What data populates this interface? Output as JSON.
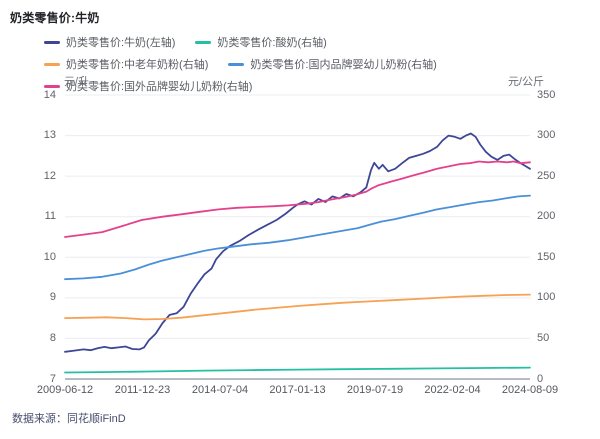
{
  "page": {
    "title": "奶类零售价:牛奶",
    "source": "数据来源：同花顺iFinD"
  },
  "chart_data": {
    "type": "line",
    "title": "奶类零售价:牛奶",
    "grid": true,
    "legend_position": "top",
    "x_range": [
      "2009-06-12",
      "2024-08-09"
    ],
    "x_tick_labels": [
      "2009-06-12",
      "2011-12-23",
      "2014-07-04",
      "2017-01-13",
      "2019-07-19",
      "2022-02-04",
      "2024-08-09"
    ],
    "left_axis": {
      "label": "元/升",
      "min": 7,
      "max": 14,
      "ticks": [
        "14",
        "13",
        "12",
        "11",
        "10",
        "9",
        "8",
        "7"
      ]
    },
    "right_axis": {
      "label": "元/公斤",
      "min": 0,
      "max": 350,
      "ticks": [
        "350",
        "300",
        "250",
        "200",
        "150",
        "100",
        "50",
        "0"
      ]
    },
    "colors": {
      "milk": "#3D4796",
      "yogurt": "#24BFA4",
      "senior_powder": "#F7A152",
      "domestic_infant_powder": "#4A90D8",
      "foreign_infant_powder": "#E4418C"
    },
    "series": [
      {
        "name": "奶类零售价:牛奶(左轴)",
        "id": "milk",
        "axis": "left",
        "color": "#3D4796",
        "points": [
          [
            0,
            7.67
          ],
          [
            0.02,
            7.7
          ],
          [
            0.04,
            7.73
          ],
          [
            0.055,
            7.71
          ],
          [
            0.07,
            7.76
          ],
          [
            0.085,
            7.79
          ],
          [
            0.1,
            7.76
          ],
          [
            0.115,
            7.78
          ],
          [
            0.13,
            7.8
          ],
          [
            0.145,
            7.74
          ],
          [
            0.16,
            7.73
          ],
          [
            0.17,
            7.78
          ],
          [
            0.18,
            7.95
          ],
          [
            0.195,
            8.12
          ],
          [
            0.21,
            8.38
          ],
          [
            0.225,
            8.58
          ],
          [
            0.24,
            8.62
          ],
          [
            0.255,
            8.78
          ],
          [
            0.27,
            9.1
          ],
          [
            0.285,
            9.35
          ],
          [
            0.3,
            9.58
          ],
          [
            0.315,
            9.72
          ],
          [
            0.325,
            9.95
          ],
          [
            0.34,
            10.15
          ],
          [
            0.355,
            10.28
          ],
          [
            0.375,
            10.4
          ],
          [
            0.395,
            10.55
          ],
          [
            0.415,
            10.68
          ],
          [
            0.435,
            10.8
          ],
          [
            0.455,
            10.92
          ],
          [
            0.475,
            11.08
          ],
          [
            0.49,
            11.22
          ],
          [
            0.5,
            11.3
          ],
          [
            0.515,
            11.38
          ],
          [
            0.53,
            11.3
          ],
          [
            0.545,
            11.44
          ],
          [
            0.56,
            11.36
          ],
          [
            0.575,
            11.5
          ],
          [
            0.59,
            11.45
          ],
          [
            0.605,
            11.56
          ],
          [
            0.62,
            11.5
          ],
          [
            0.635,
            11.6
          ],
          [
            0.648,
            11.72
          ],
          [
            0.658,
            12.15
          ],
          [
            0.665,
            12.33
          ],
          [
            0.675,
            12.18
          ],
          [
            0.683,
            12.28
          ],
          [
            0.695,
            12.12
          ],
          [
            0.71,
            12.18
          ],
          [
            0.725,
            12.32
          ],
          [
            0.74,
            12.45
          ],
          [
            0.755,
            12.5
          ],
          [
            0.77,
            12.55
          ],
          [
            0.785,
            12.62
          ],
          [
            0.8,
            12.72
          ],
          [
            0.812,
            12.88
          ],
          [
            0.825,
            13.0
          ],
          [
            0.838,
            12.97
          ],
          [
            0.85,
            12.92
          ],
          [
            0.862,
            13.0
          ],
          [
            0.873,
            13.05
          ],
          [
            0.883,
            12.97
          ],
          [
            0.893,
            12.78
          ],
          [
            0.905,
            12.6
          ],
          [
            0.917,
            12.48
          ],
          [
            0.93,
            12.4
          ],
          [
            0.943,
            12.5
          ],
          [
            0.955,
            12.53
          ],
          [
            0.967,
            12.42
          ],
          [
            0.98,
            12.32
          ],
          [
            0.99,
            12.25
          ],
          [
            1,
            12.18
          ]
        ]
      },
      {
        "name": "奶类零售价:酸奶(右轴)",
        "id": "yogurt",
        "axis": "right",
        "color": "#24BFA4",
        "points": [
          [
            0,
            8
          ],
          [
            0.1,
            8.6
          ],
          [
            0.2,
            9.4
          ],
          [
            0.3,
            10.3
          ],
          [
            0.4,
            11
          ],
          [
            0.5,
            11.6
          ],
          [
            0.6,
            12.1
          ],
          [
            0.7,
            12.6
          ],
          [
            0.8,
            13.1
          ],
          [
            0.9,
            13.6
          ],
          [
            1,
            14
          ]
        ]
      },
      {
        "name": "奶类零售价:中老年奶粉(右轴)",
        "id": "senior_powder",
        "axis": "right",
        "color": "#F7A152",
        "points": [
          [
            0,
            75
          ],
          [
            0.05,
            75.5
          ],
          [
            0.09,
            76
          ],
          [
            0.13,
            75
          ],
          [
            0.17,
            73.5
          ],
          [
            0.21,
            74
          ],
          [
            0.25,
            75.5
          ],
          [
            0.29,
            78
          ],
          [
            0.33,
            80.5
          ],
          [
            0.37,
            83
          ],
          [
            0.41,
            85.5
          ],
          [
            0.45,
            87.5
          ],
          [
            0.5,
            90
          ],
          [
            0.55,
            92
          ],
          [
            0.6,
            94
          ],
          [
            0.65,
            95.5
          ],
          [
            0.7,
            97
          ],
          [
            0.75,
            98.5
          ],
          [
            0.8,
            100
          ],
          [
            0.85,
            101.5
          ],
          [
            0.9,
            102.5
          ],
          [
            0.95,
            103.5
          ],
          [
            1,
            104
          ]
        ]
      },
      {
        "name": "奶类零售价:国内品牌婴幼儿奶粉(右轴)",
        "id": "domestic_infant_powder",
        "axis": "right",
        "color": "#4A90D8",
        "points": [
          [
            0,
            123
          ],
          [
            0.04,
            124
          ],
          [
            0.08,
            126
          ],
          [
            0.12,
            130
          ],
          [
            0.15,
            135
          ],
          [
            0.18,
            141
          ],
          [
            0.21,
            146
          ],
          [
            0.24,
            150
          ],
          [
            0.27,
            154
          ],
          [
            0.3,
            158
          ],
          [
            0.33,
            161
          ],
          [
            0.36,
            163
          ],
          [
            0.4,
            166
          ],
          [
            0.44,
            168
          ],
          [
            0.48,
            171
          ],
          [
            0.52,
            175
          ],
          [
            0.56,
            179
          ],
          [
            0.6,
            183
          ],
          [
            0.63,
            186
          ],
          [
            0.655,
            190
          ],
          [
            0.68,
            194
          ],
          [
            0.71,
            197
          ],
          [
            0.74,
            201
          ],
          [
            0.77,
            205
          ],
          [
            0.8,
            209
          ],
          [
            0.83,
            212
          ],
          [
            0.86,
            215
          ],
          [
            0.89,
            218
          ],
          [
            0.92,
            220
          ],
          [
            0.95,
            223
          ],
          [
            0.975,
            225
          ],
          [
            1,
            226
          ]
        ]
      },
      {
        "name": "奶类零售价:国外品牌婴幼儿奶粉(右轴)",
        "id": "foreign_infant_powder",
        "axis": "right",
        "color": "#E4418C",
        "points": [
          [
            0,
            175
          ],
          [
            0.04,
            178
          ],
          [
            0.08,
            181
          ],
          [
            0.12,
            188
          ],
          [
            0.165,
            196
          ],
          [
            0.21,
            200
          ],
          [
            0.25,
            203
          ],
          [
            0.29,
            206
          ],
          [
            0.33,
            209
          ],
          [
            0.37,
            211
          ],
          [
            0.41,
            212
          ],
          [
            0.45,
            213
          ],
          [
            0.48,
            214
          ],
          [
            0.5,
            215
          ],
          [
            0.52,
            216
          ],
          [
            0.545,
            218
          ],
          [
            0.57,
            221
          ],
          [
            0.6,
            224
          ],
          [
            0.625,
            227
          ],
          [
            0.648,
            231
          ],
          [
            0.66,
            235
          ],
          [
            0.675,
            239
          ],
          [
            0.7,
            243
          ],
          [
            0.725,
            247
          ],
          [
            0.75,
            251
          ],
          [
            0.775,
            255
          ],
          [
            0.8,
            259
          ],
          [
            0.825,
            262
          ],
          [
            0.85,
            265
          ],
          [
            0.87,
            266
          ],
          [
            0.89,
            268
          ],
          [
            0.91,
            267
          ],
          [
            0.93,
            268
          ],
          [
            0.95,
            267
          ],
          [
            0.965,
            268
          ],
          [
            0.98,
            266
          ],
          [
            1,
            267
          ]
        ]
      }
    ]
  }
}
